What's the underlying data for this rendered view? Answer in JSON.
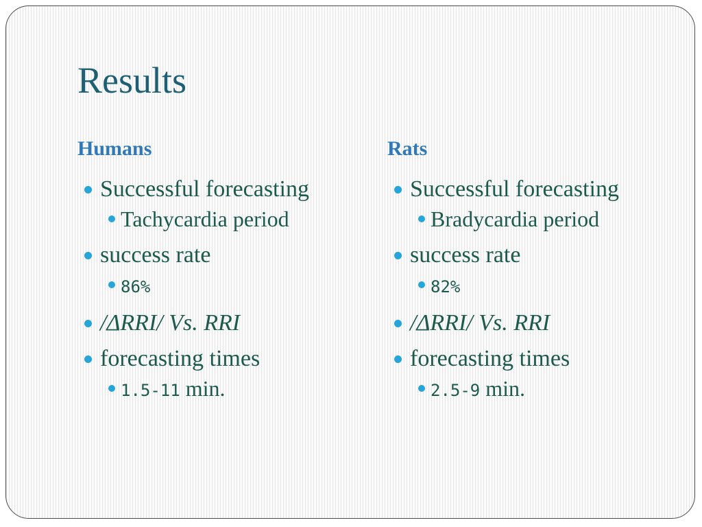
{
  "slide": {
    "title": "Results"
  },
  "humans": {
    "heading": "Humans",
    "forecasting_label": "Successful forecasting",
    "period": "Tachycardia period",
    "success_label": "success rate",
    "success_value": "86%",
    "comparison_prefix": "/ΔRRI/",
    "comparison_suffix": " Vs. RRI",
    "times_label": "forecasting times",
    "times_value": "1.5-11",
    "times_unit": " min."
  },
  "rats": {
    "heading": "Rats",
    "forecasting_label": "Successful forecasting",
    "period": "Bradycardia period",
    "success_label": "success rate",
    "success_value": "82%",
    "comparison_prefix": "/ΔRRI/",
    "comparison_suffix": " Vs. RRI",
    "times_label": "forecasting times",
    "times_value": "2.5-9",
    "times_unit": " min."
  },
  "colors": {
    "title": "#1e5f73",
    "heading": "#2f79b7",
    "body": "#1c5a4c",
    "bullet": "#27a5d8"
  }
}
